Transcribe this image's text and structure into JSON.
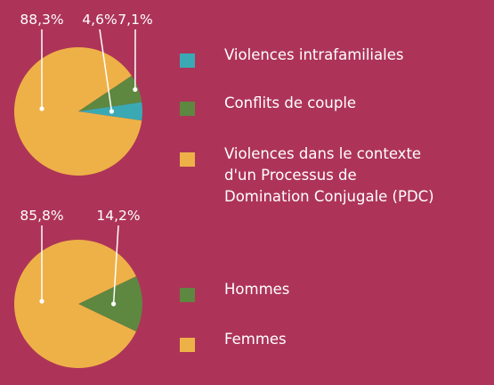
{
  "colors": {
    "background": "#ad3458",
    "intrafamiliales": "#3aa9b4",
    "conflits": "#5e8740",
    "pdc": "#eeb148",
    "hommes": "#5e8740",
    "femmes": "#eeb148"
  },
  "chart_data": [
    {
      "type": "pie",
      "labels": [
        "Violences intrafamiliales",
        "Conflits de couple",
        "Violences dans le contexte d'un Processus de Domination Conjugale (PDC)"
      ],
      "values": [
        4.6,
        7.1,
        88.3
      ],
      "value_labels": [
        "4,6%",
        "7,1%",
        "88,3%"
      ],
      "colors": [
        "#3aa9b4",
        "#5e8740",
        "#eeb148"
      ],
      "legend": "right"
    },
    {
      "type": "pie",
      "labels": [
        "Hommes",
        "Femmes"
      ],
      "values": [
        14.2,
        85.8
      ],
      "value_labels": [
        "14,2%",
        "85,8%"
      ],
      "colors": [
        "#5e8740",
        "#eeb148"
      ],
      "legend": "right"
    }
  ],
  "legend1": {
    "items": [
      {
        "label": "Violences intrafamiliales",
        "color": "#3aa9b4"
      },
      {
        "label": "Conflits de couple",
        "color": "#5e8740"
      },
      {
        "label": "Violences dans le contexte\nd'un Processus de\nDomination Conjugale (PDC)",
        "color": "#eeb148"
      }
    ]
  },
  "legend2": {
    "items": [
      {
        "label": "Hommes",
        "color": "#5e8740"
      },
      {
        "label": "Femmes",
        "color": "#eeb148"
      }
    ]
  }
}
